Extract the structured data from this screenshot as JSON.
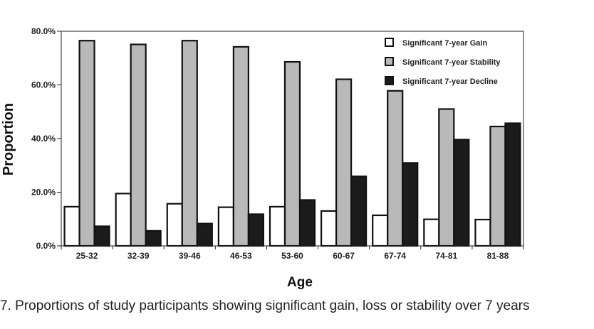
{
  "chart_data": {
    "type": "bar",
    "title": "",
    "xlabel": "Age",
    "ylabel": "Proportion",
    "ylim": [
      0,
      0.8
    ],
    "yticks": [
      0.0,
      0.2,
      0.4,
      0.6,
      0.8
    ],
    "ytick_labels": [
      "0.0%",
      "20.0%",
      "40.0%",
      "60.0%",
      "80.0%"
    ],
    "categories": [
      "25-32",
      "32-39",
      "39-46",
      "46-53",
      "53-60",
      "60-67",
      "67-74",
      "74-81",
      "81-88"
    ],
    "legend_position": "top-right",
    "series": [
      {
        "name": "Significant 7-year Gain",
        "color": "#ffffff",
        "values": [
          0.146,
          0.195,
          0.157,
          0.144,
          0.146,
          0.13,
          0.114,
          0.099,
          0.098
        ]
      },
      {
        "name": "Significant 7-year Stability",
        "color": "#b9b9b9",
        "values": [
          0.765,
          0.751,
          0.765,
          0.742,
          0.686,
          0.621,
          0.578,
          0.51,
          0.445
        ]
      },
      {
        "name": "Significant 7-year Decline",
        "color": "#1b1b1b",
        "values": [
          0.073,
          0.056,
          0.083,
          0.118,
          0.171,
          0.259,
          0.309,
          0.396,
          0.457
        ]
      }
    ]
  },
  "caption": "7. Proportions of study participants showing significant gain, loss or stability over 7 years"
}
